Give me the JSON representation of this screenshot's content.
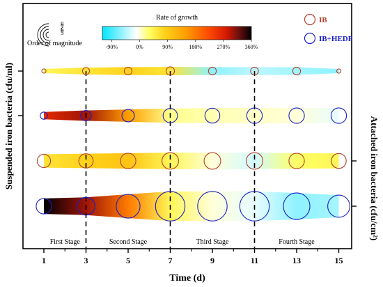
{
  "chart_data": {
    "type": "bubble-band",
    "xlabel": "Time (d)",
    "ylabel_left": "Suspended iron bacteria (cfu/ml)",
    "ylabel_right": "Attached iron bacteria (cfu/cm²)",
    "x_ticks": [
      "1",
      "3",
      "5",
      "7",
      "9",
      "11",
      "13",
      "15"
    ],
    "x_range": [
      0,
      16
    ],
    "stage_boundaries": [
      3,
      7,
      11
    ],
    "stages": [
      {
        "label": "First Stage",
        "from": 1,
        "to": 3
      },
      {
        "label": "Second Stage",
        "from": 3,
        "to": 7
      },
      {
        "label": "Third Stage",
        "from": 7,
        "to": 11
      },
      {
        "label": "Fourth Stage",
        "from": 11,
        "to": 15
      }
    ],
    "colorbar": {
      "title": "Rate of growth",
      "ticks": [
        "-90%",
        "0%",
        "90%",
        "180%",
        "270%",
        "360%"
      ],
      "tick_values": [
        -90,
        0,
        90,
        180,
        270,
        360
      ],
      "range": [
        -120,
        360
      ],
      "stops": [
        {
          "value": -120,
          "color": "#00e5ff"
        },
        {
          "value": -60,
          "color": "#8ef2ff"
        },
        {
          "value": -10,
          "color": "#ffffff"
        },
        {
          "value": 30,
          "color": "#ffff66"
        },
        {
          "value": 80,
          "color": "#ffd21a"
        },
        {
          "value": 150,
          "color": "#ff9d00"
        },
        {
          "value": 220,
          "color": "#ff4d00"
        },
        {
          "value": 280,
          "color": "#d41800"
        },
        {
          "value": 320,
          "color": "#6a0f0f"
        },
        {
          "value": 360,
          "color": "#000000"
        }
      ]
    },
    "magnitude_legend": {
      "title": "Order of magnitude",
      "labels": [
        "8",
        "7",
        "6",
        "5"
      ],
      "values": [
        8,
        7,
        6,
        5
      ]
    },
    "legend": [
      {
        "name": "IB",
        "color": "#b5402a"
      },
      {
        "name": "IB+HEDP",
        "color": "#1a1fc7"
      }
    ],
    "rows": [
      {
        "name": "Suspended · IB",
        "panel": "suspended",
        "marker_color": "#b5402a",
        "x": [
          1,
          3,
          5,
          7,
          9,
          11,
          13,
          15
        ],
        "magnitude": [
          2.6,
          4.0,
          4.3,
          4.5,
          4.3,
          4.3,
          4.3,
          2.6
        ],
        "growth": [
          40,
          60,
          80,
          60,
          -60,
          -40,
          -50,
          -60
        ]
      },
      {
        "name": "Suspended · IB+HEDP",
        "panel": "suspended",
        "marker_color": "#1a1fc7",
        "x": [
          1,
          3,
          5,
          7,
          9,
          11,
          13,
          15
        ],
        "magnitude": [
          4.1,
          5.1,
          5.6,
          6.0,
          6.1,
          6.2,
          6.2,
          6.2
        ],
        "growth": [
          260,
          300,
          150,
          20,
          10,
          5,
          0,
          -20
        ]
      },
      {
        "name": "Attached · IB",
        "panel": "attached",
        "marker_color": "#b5402a",
        "x": [
          1,
          3,
          5,
          7,
          9,
          11,
          13,
          15
        ],
        "magnitude": [
          5.8,
          6.0,
          6.2,
          6.4,
          6.4,
          6.4,
          6.2,
          6.1
        ],
        "growth": [
          60,
          80,
          100,
          40,
          0,
          -30,
          30,
          40
        ]
      },
      {
        "name": "Attached · IB+HEDP",
        "panel": "attached",
        "marker_color": "#1a1fc7",
        "x": [
          1,
          3,
          5,
          7,
          9,
          11,
          13,
          15
        ],
        "magnitude": [
          6.2,
          6.6,
          7.4,
          8.0,
          8.0,
          8.0,
          7.7,
          7.2
        ],
        "growth": [
          360,
          300,
          180,
          40,
          0,
          -20,
          -60,
          -50
        ]
      }
    ]
  }
}
